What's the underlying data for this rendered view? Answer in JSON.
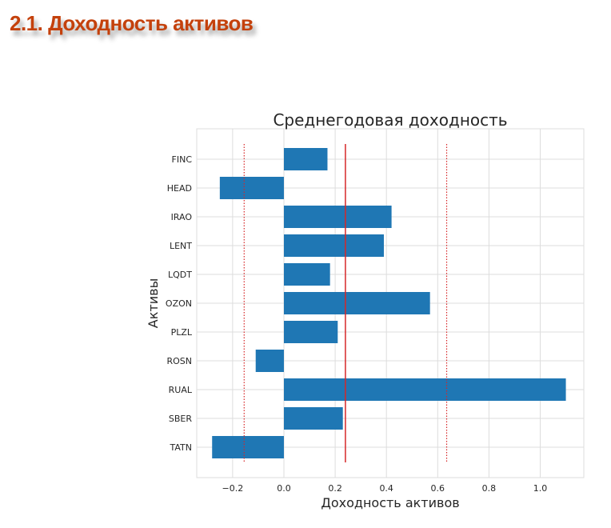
{
  "page": {
    "heading": "2.1. Доходность активов"
  },
  "colors": {
    "bar": "#1f77b4",
    "reference_line": "#d62728",
    "grid": "#dddddd",
    "heading": "#c4410c"
  },
  "chart_data": {
    "type": "bar",
    "orientation": "horizontal",
    "title": "Среднегодовая доходность",
    "xlabel": "Доходность активов",
    "ylabel": "Активы",
    "categories": [
      "FINC",
      "HEAD",
      "IRAO",
      "LENT",
      "LQDT",
      "OZON",
      "PLZL",
      "ROSN",
      "RUAL",
      "SBER",
      "TATN"
    ],
    "values": [
      0.17,
      -0.25,
      0.42,
      0.39,
      0.18,
      0.57,
      0.21,
      -0.11,
      1.1,
      0.23,
      -0.28
    ],
    "xlim": [
      -0.34,
      1.17
    ],
    "xticks": [
      "−0.2",
      "0.0",
      "0.2",
      "0.4",
      "0.6",
      "0.8",
      "1.0"
    ],
    "xtick_values": [
      -0.2,
      0.0,
      0.2,
      0.4,
      0.6,
      0.8,
      1.0
    ],
    "reference_lines": [
      {
        "value": -0.155,
        "style": "dotted"
      },
      {
        "value": 0.24,
        "style": "solid"
      },
      {
        "value": 0.635,
        "style": "dotted"
      }
    ],
    "grid": true
  }
}
